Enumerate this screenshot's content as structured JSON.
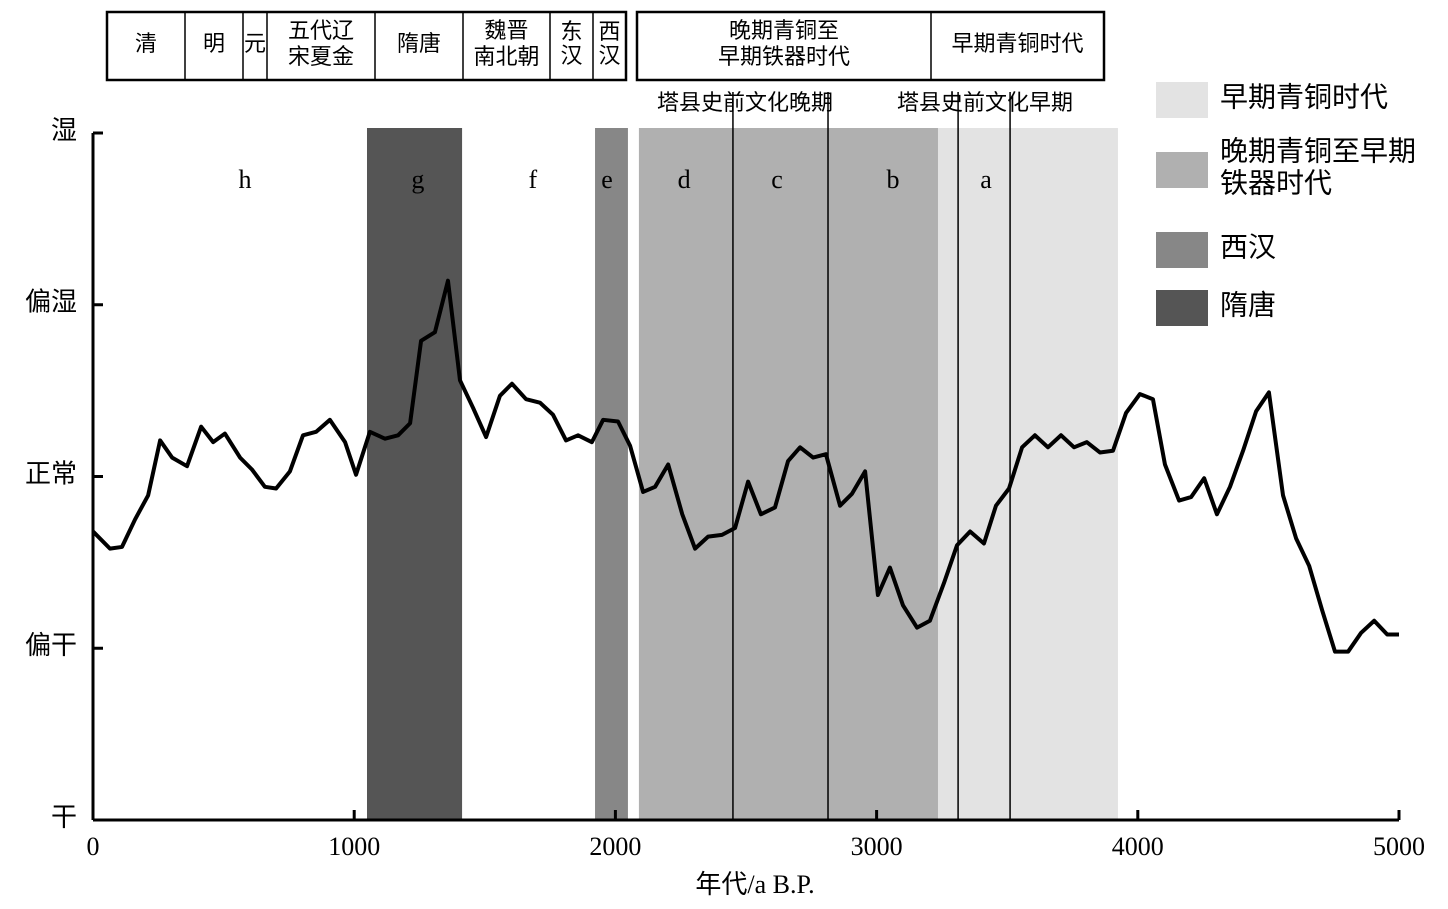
{
  "chart_data": {
    "type": "line",
    "xlabel": "年代/a B.P.",
    "xlim": [
      0,
      5000
    ],
    "xticks": [
      0,
      1000,
      2000,
      3000,
      4000,
      5000
    ],
    "ylim": [
      0,
      4
    ],
    "yticks": [
      {
        "value": 0,
        "label": "干"
      },
      {
        "value": 1,
        "label": "偏干"
      },
      {
        "value": 2,
        "label": "正常"
      },
      {
        "value": 3,
        "label": "偏湿"
      },
      {
        "value": 4,
        "label": "湿"
      }
    ],
    "color": "#000000",
    "x": [
      0,
      65,
      111,
      161,
      211,
      257,
      303,
      360,
      414,
      460,
      505,
      563,
      609,
      658,
      701,
      754,
      804,
      854,
      907,
      965,
      1007,
      1060,
      1118,
      1168,
      1214,
      1256,
      1309,
      1359,
      1405,
      1455,
      1505,
      1558,
      1604,
      1658,
      1711,
      1761,
      1811,
      1857,
      1910,
      1953,
      2010,
      2056,
      2106,
      2152,
      2202,
      2256,
      2305,
      2355,
      2408,
      2458,
      2508,
      2557,
      2611,
      2661,
      2707,
      2757,
      2806,
      2860,
      2906,
      2956,
      3005,
      3051,
      3101,
      3155,
      3204,
      3258,
      3308,
      3358,
      3411,
      3457,
      3507,
      3557,
      3606,
      3656,
      3706,
      3756,
      3805,
      3855,
      3905,
      3955,
      4008,
      4058,
      4104,
      4158,
      4204,
      4254,
      4303,
      4353,
      4403,
      4453,
      4502,
      4556,
      4606,
      4656,
      4706,
      4755,
      4805,
      4855,
      4905,
      4955,
      5000
    ],
    "values": [
      1.68,
      1.58,
      1.59,
      1.75,
      1.89,
      2.21,
      2.11,
      2.06,
      2.29,
      2.2,
      2.25,
      2.11,
      2.04,
      1.94,
      1.93,
      2.03,
      2.24,
      2.26,
      2.33,
      2.2,
      2.01,
      2.26,
      2.22,
      2.24,
      2.31,
      2.79,
      2.84,
      3.14,
      2.56,
      2.4,
      2.23,
      2.47,
      2.54,
      2.45,
      2.43,
      2.36,
      2.21,
      2.24,
      2.2,
      2.33,
      2.32,
      2.18,
      1.91,
      1.94,
      2.07,
      1.78,
      1.58,
      1.65,
      1.66,
      1.7,
      1.97,
      1.78,
      1.82,
      2.09,
      2.17,
      2.11,
      2.13,
      1.83,
      1.9,
      2.03,
      1.31,
      1.47,
      1.25,
      1.12,
      1.16,
      1.38,
      1.6,
      1.68,
      1.61,
      1.83,
      1.93,
      2.17,
      2.24,
      2.17,
      2.24,
      2.17,
      2.2,
      2.14,
      2.15,
      2.37,
      2.48,
      2.45,
      2.07,
      1.86,
      1.88,
      1.99,
      1.78,
      1.94,
      2.15,
      2.38,
      2.49,
      1.89,
      1.64,
      1.48,
      1.22,
      0.98,
      0.98,
      1.09,
      1.16,
      1.08,
      1.08
    ],
    "bands": [
      {
        "name": [
          "早期青铜时代"
        ],
        "color": "#e3e3e3",
        "range": [
          3235,
          3924
        ]
      },
      {
        "name": [
          "晚期青铜至早期",
          "铁器时代"
        ],
        "color": "#b0b0b0",
        "range": [
          2090,
          3235
        ]
      },
      {
        "name": [
          "西汉"
        ],
        "color": "#878787",
        "range": [
          1922,
          2048
        ]
      },
      {
        "name": [
          "隋唐"
        ],
        "color": "#555555",
        "range": [
          1049,
          1413
        ]
      }
    ],
    "dividers": [
      2450,
      2814,
      3312,
      3511
    ],
    "zones": [
      {
        "label": "h",
        "x": 582
      },
      {
        "label": "g",
        "x": 1244
      },
      {
        "label": "f",
        "x": 1684
      },
      {
        "label": "e",
        "x": 1968
      },
      {
        "label": "d",
        "x": 2263
      },
      {
        "label": "c",
        "x": 2619
      },
      {
        "label": "b",
        "x": 3063
      },
      {
        "label": "a",
        "x": 3419
      }
    ],
    "dynasties": [
      [
        "清"
      ],
      [
        "明"
      ],
      [
        "元"
      ],
      [
        "五代辽",
        "宋夏金"
      ],
      [
        "隋唐"
      ],
      [
        "魏晋",
        "南北朝"
      ],
      [
        "东",
        "汉"
      ],
      [
        "西",
        "汉"
      ]
    ],
    "ages": [
      [
        "晚期青铜至",
        "早期铁器时代"
      ],
      [
        "早期青铜时代"
      ]
    ],
    "cultures": [
      "塔县史前文化晚期",
      "塔县史前文化早期"
    ]
  }
}
